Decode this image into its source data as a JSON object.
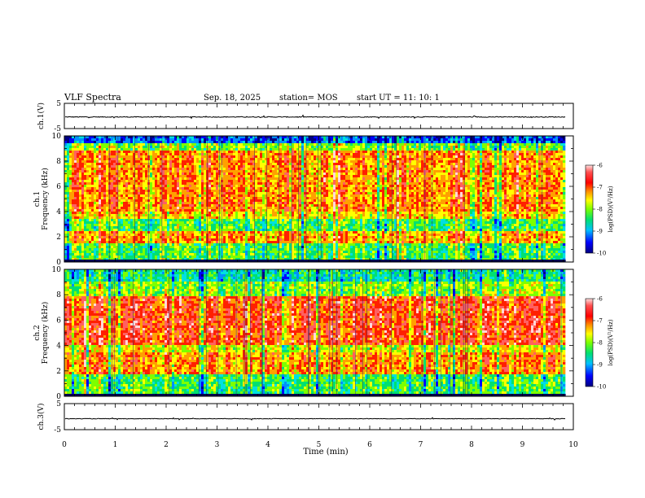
{
  "header": {
    "title": "VLF Spectra",
    "date": "Sep. 18, 2025",
    "station": "station= MOS",
    "start": "start  UT =   11: 10: 1"
  },
  "colors": {
    "spectrum": [
      "#000080",
      "#0000ff",
      "#00c0ff",
      "#00e070",
      "#7cff00",
      "#ffff00",
      "#ff9000",
      "#ff0000",
      "#ff2020",
      "#ffd0d0"
    ]
  },
  "chart_data": [
    {
      "type": "line",
      "name": "ch1-voltage",
      "ylabel": "ch.1(V)",
      "ylim": [
        -5,
        5
      ],
      "yticks": [
        "5",
        "-5"
      ],
      "x": [
        0,
        9.85
      ],
      "series": [
        {
          "name": "ch.1",
          "values": [
            -0.4,
            -0.4
          ],
          "noise_amplitude": 0.3
        }
      ]
    },
    {
      "type": "heatmap",
      "name": "ch1-spectrogram",
      "ylabel": "ch.1\nFrequency (kHz)",
      "ylim": [
        0,
        10
      ],
      "yticks": [
        "0",
        "2",
        "4",
        "6",
        "8",
        "10"
      ],
      "xlim": [
        0,
        10
      ],
      "data_end_min": 9.85,
      "bands": [
        {
          "from_khz": 0.0,
          "to_khz": 0.2,
          "level": 0.05
        },
        {
          "from_khz": 0.2,
          "to_khz": 1.5,
          "level": 0.45
        },
        {
          "from_khz": 1.5,
          "to_khz": 2.4,
          "level": 0.68
        },
        {
          "from_khz": 2.4,
          "to_khz": 3.4,
          "level": 0.45
        },
        {
          "from_khz": 3.4,
          "to_khz": 4.0,
          "level": 0.62
        },
        {
          "from_khz": 4.0,
          "to_khz": 8.8,
          "level": 0.7
        },
        {
          "from_khz": 8.8,
          "to_khz": 9.4,
          "level": 0.5
        },
        {
          "from_khz": 9.4,
          "to_khz": 10.0,
          "level": 0.18
        }
      ],
      "colorbar": {
        "label": "log(PSD)(V²/Hz)",
        "ticks": [
          "-6",
          "-7",
          "-8",
          "-9",
          "-10"
        ],
        "range": [
          -10,
          -6
        ]
      }
    },
    {
      "type": "heatmap",
      "name": "ch2-spectrogram",
      "ylabel": "ch.2\nFrequency (kHz)",
      "ylim": [
        0,
        10
      ],
      "yticks": [
        "0",
        "2",
        "4",
        "6",
        "8",
        "10"
      ],
      "xlim": [
        0,
        10
      ],
      "data_end_min": 9.85,
      "bands": [
        {
          "from_khz": 0.0,
          "to_khz": 0.2,
          "level": 0.05
        },
        {
          "from_khz": 0.2,
          "to_khz": 1.8,
          "level": 0.45
        },
        {
          "from_khz": 1.8,
          "to_khz": 3.4,
          "level": 0.7
        },
        {
          "from_khz": 3.4,
          "to_khz": 4.0,
          "level": 0.58
        },
        {
          "from_khz": 4.0,
          "to_khz": 7.8,
          "level": 0.78
        },
        {
          "from_khz": 7.8,
          "to_khz": 9.0,
          "level": 0.52
        },
        {
          "from_khz": 9.0,
          "to_khz": 10.0,
          "level": 0.38
        }
      ],
      "colorbar": {
        "label": "log(PSD)(V²/Hz)",
        "ticks": [
          "-6",
          "-7",
          "-8",
          "-9",
          "-10"
        ],
        "range": [
          -10,
          -6
        ]
      }
    },
    {
      "type": "line",
      "name": "ch3-voltage",
      "ylabel": "ch.3(V)",
      "ylim": [
        -5,
        5
      ],
      "yticks": [
        "5",
        "-5"
      ],
      "x": [
        0,
        9.85
      ],
      "series": [
        {
          "name": "ch.3",
          "values": [
            -0.8,
            -0.8
          ],
          "noise_amplitude": 0.2
        }
      ]
    }
  ],
  "xaxis": {
    "label": "Time (min)",
    "ticks": [
      "0",
      "1",
      "2",
      "3",
      "4",
      "5",
      "6",
      "7",
      "8",
      "9",
      "10"
    ],
    "xlim": [
      0,
      10
    ]
  }
}
